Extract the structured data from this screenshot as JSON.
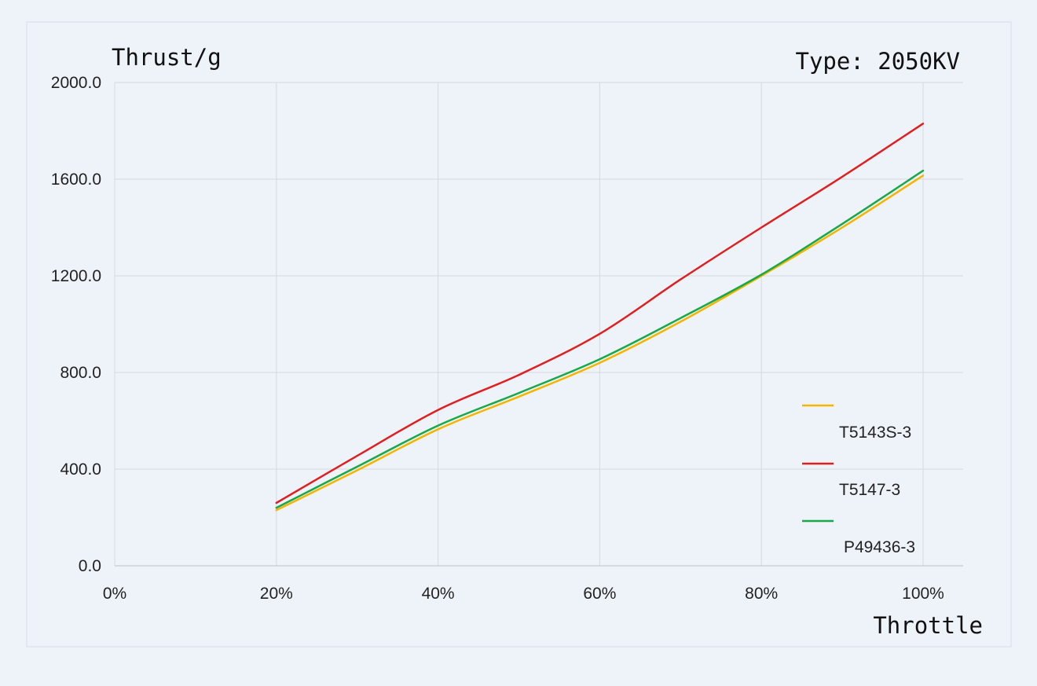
{
  "chart_data": {
    "type": "line",
    "title": "Type: 2050KV",
    "ylabel": "Thrust/g",
    "xlabel": "Throttle",
    "x": [
      20,
      30,
      40,
      50,
      60,
      70,
      80,
      90,
      100
    ],
    "x_tick_labels": [
      "0%",
      "20%",
      "40%",
      "60%",
      "80%",
      "100%"
    ],
    "y_tick_labels": [
      "0.0",
      "400.0",
      "800.0",
      "1200.0",
      "1600.0",
      "2000.0"
    ],
    "xlim": [
      0,
      100
    ],
    "ylim": [
      0,
      2000
    ],
    "grid": true,
    "legend_position": "right",
    "series": [
      {
        "name": "T5143S-3",
        "color": "#f5b400",
        "values": [
          230,
          395,
          565,
          700,
          840,
          1010,
          1200,
          1400,
          1615
        ]
      },
      {
        "name": "T5147-3",
        "color": "#e02020",
        "values": [
          260,
          455,
          645,
          790,
          960,
          1185,
          1400,
          1610,
          1830
        ]
      },
      {
        "name": "P49436-3",
        "color": "#17a84a",
        "values": [
          240,
          410,
          580,
          715,
          855,
          1025,
          1205,
          1415,
          1635
        ]
      }
    ]
  }
}
